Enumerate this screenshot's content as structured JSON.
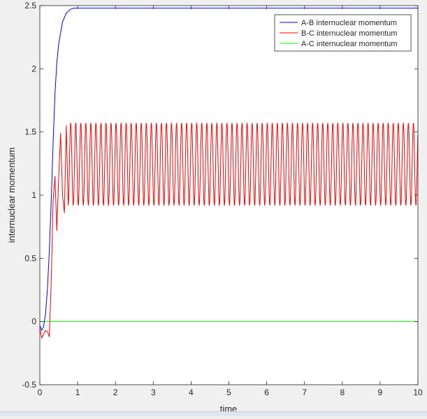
{
  "chart_data": {
    "type": "line",
    "title": "",
    "xlabel": "time",
    "ylabel": "internuclear momentum",
    "xlim": [
      0,
      10
    ],
    "ylim": [
      -0.5,
      2.5
    ],
    "xticks": [
      "0",
      "1",
      "2",
      "3",
      "4",
      "5",
      "6",
      "7",
      "8",
      "9",
      "10"
    ],
    "yticks": [
      "-0.5",
      "0",
      "0.5",
      "1",
      "1.5",
      "2",
      "2.5"
    ],
    "grid": false,
    "legend_position": "top-right",
    "series": [
      {
        "name": "A-B internuclear momentum",
        "color": "#0000ff",
        "model": "saturating rise",
        "x": [
          0,
          0.05,
          0.1,
          0.15,
          0.2,
          0.25,
          0.3,
          0.35,
          0.4,
          0.45,
          0.5,
          0.6,
          0.7,
          0.8,
          0.9,
          1.0,
          1.2,
          1.5,
          10
        ],
        "y": [
          -0.03,
          -0.07,
          -0.04,
          0.06,
          0.25,
          0.55,
          0.95,
          1.4,
          1.8,
          2.05,
          2.2,
          2.37,
          2.44,
          2.47,
          2.48,
          2.48,
          2.48,
          2.48,
          2.48
        ]
      },
      {
        "name": "B-C internuclear momentum",
        "color": "#ff0000",
        "model": "damped rise into steady oscillation",
        "x": [
          0,
          0.05,
          0.1,
          0.15,
          0.2,
          0.25,
          0.3,
          0.35,
          0.4,
          0.45,
          0.5,
          0.55,
          0.6,
          0.65,
          0.7,
          0.75
        ],
        "y": [
          -0.05,
          -0.13,
          -0.1,
          -0.07,
          -0.08,
          -0.12,
          0.3,
          0.95,
          1.15,
          0.72,
          1.15,
          1.49,
          1.0,
          0.86,
          1.55,
          0.93
        ],
        "steady_max": 1.57,
        "steady_min": 0.92,
        "steady_period": 0.1333
      },
      {
        "name": "A-C internuclear momentum",
        "color": "#00ff00",
        "model": "constant",
        "x": [
          0,
          10
        ],
        "y": [
          0,
          0
        ]
      }
    ]
  },
  "colors": {
    "figure_background": "#f0f0f0",
    "axes_background": "#ffffff",
    "axis": "#262626"
  }
}
